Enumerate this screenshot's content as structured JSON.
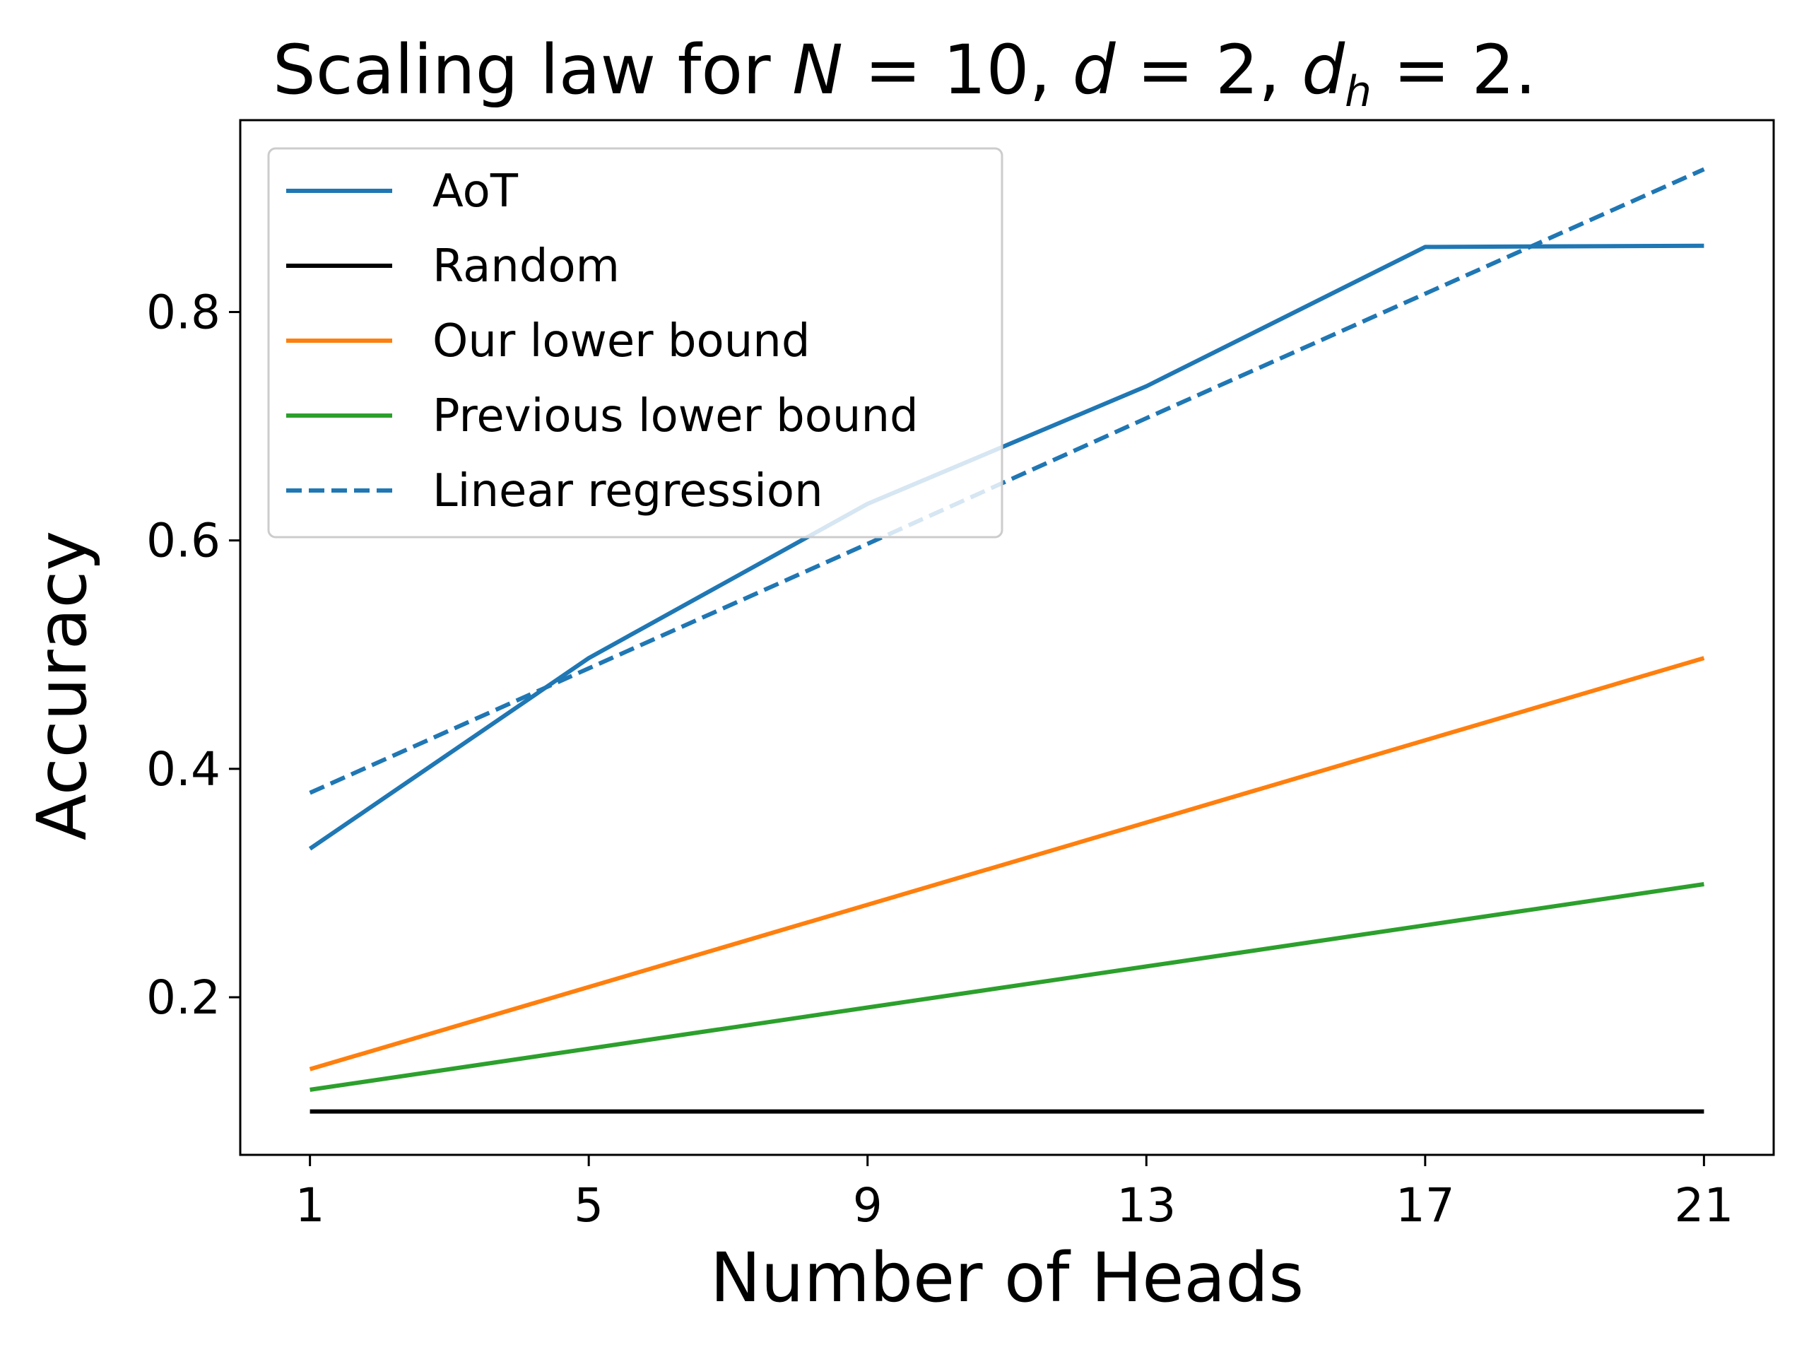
{
  "chart_data": {
    "type": "line",
    "title": {
      "prefix": "Scaling law for ",
      "var1": "N",
      "eq1": " = 10, ",
      "var2": "d",
      "eq2": " = 2, ",
      "var3": "d",
      "var3_sub": "h",
      "eq3": " = 2."
    },
    "xlabel": "Number of Heads",
    "ylabel": "Accuracy",
    "x": [
      1,
      5,
      9,
      13,
      17,
      21
    ],
    "xticks": [
      "1",
      "5",
      "9",
      "13",
      "17",
      "21"
    ],
    "xlim": [
      0,
      22
    ],
    "yticks": [
      0.2,
      0.4,
      0.6,
      0.8
    ],
    "ytick_labels": [
      "0.2",
      "0.4",
      "0.6",
      "0.8"
    ],
    "ylim": [
      0.062,
      0.968
    ],
    "grid": false,
    "legend_position": "upper-left",
    "series": [
      {
        "name": "AoT",
        "color": "#1f77b4",
        "dash": "solid",
        "values": [
          0.33,
          0.497,
          0.632,
          0.735,
          0.857,
          0.858
        ]
      },
      {
        "name": "Random",
        "color": "#000000",
        "dash": "solid",
        "values": [
          0.1,
          0.1,
          0.1,
          0.1,
          0.1,
          0.1
        ]
      },
      {
        "name": "Our lower bound",
        "color": "#ff7f0e",
        "dash": "solid",
        "values": [
          0.137,
          0.209,
          0.281,
          0.353,
          0.425,
          0.497
        ]
      },
      {
        "name": "Previous lower bound",
        "color": "#2ca02c",
        "dash": "solid",
        "values": [
          0.119,
          0.155,
          0.191,
          0.227,
          0.263,
          0.299
        ]
      },
      {
        "name": "Linear regression",
        "color": "#1f77b4",
        "dash": "dashed",
        "values": [
          0.379,
          0.488,
          0.597,
          0.707,
          0.816,
          0.925
        ]
      }
    ]
  }
}
